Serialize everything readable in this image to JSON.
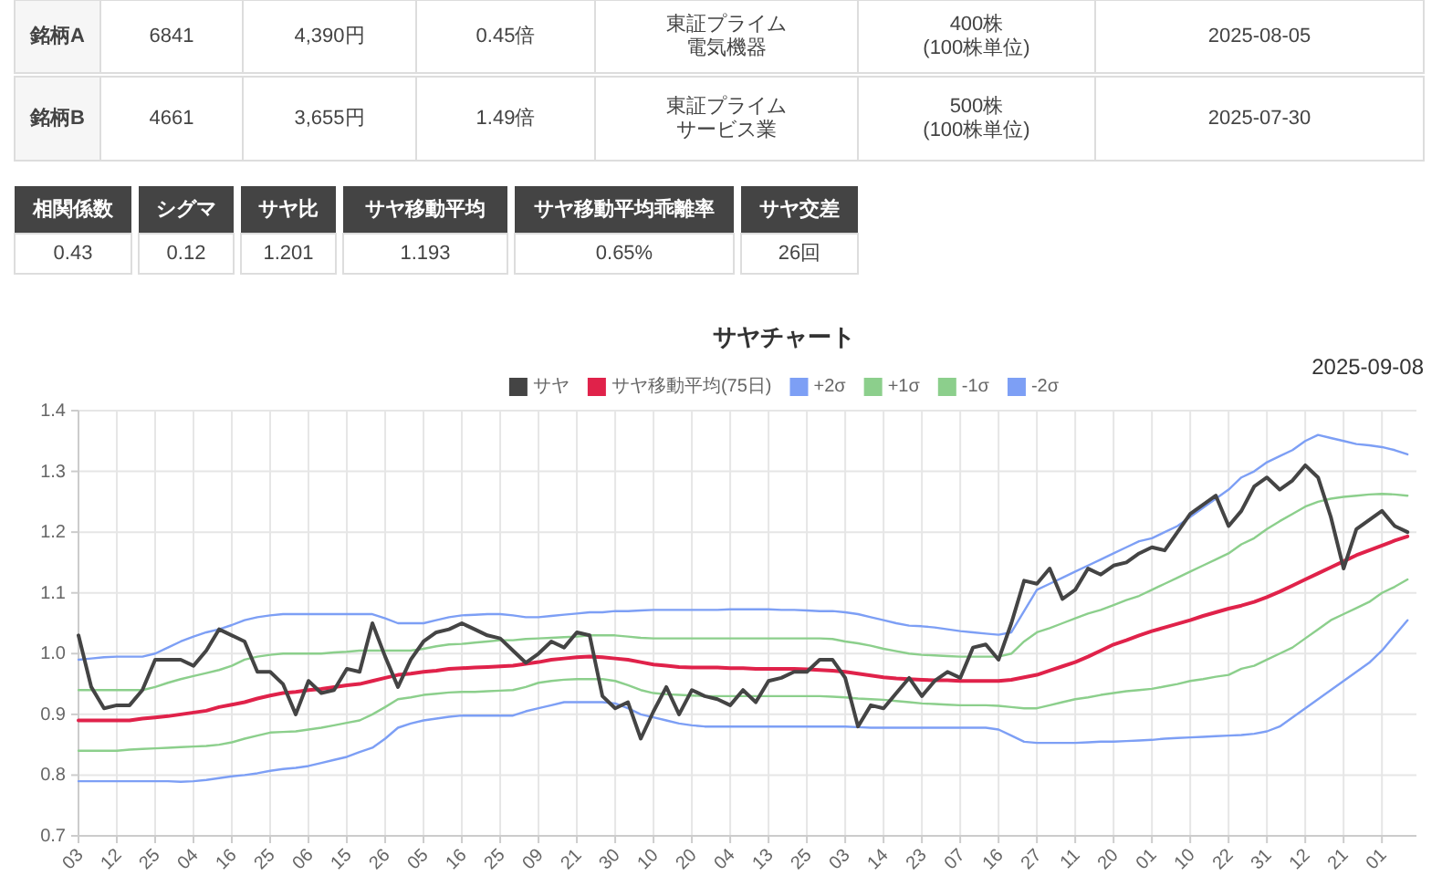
{
  "chart_data": [
    {
      "type": "other",
      "annotations": [
        "銘柄A",
        "6841",
        "4,390円",
        "0.45倍",
        "東証プライム",
        "電気機器",
        "400株\n(100株単位)",
        "2025-08-05",
        "銘柄B",
        "4661",
        "3,655円",
        "1.49倍",
        "東証プライム",
        "サービス業",
        "500株\n(100株単位)",
        "2025-07-30",
        "相関係数",
        "0.43",
        "シグマ",
        "0.12",
        "サヤ比",
        "1.201",
        "サヤ移動平均",
        "1.193",
        "サヤ移動平均乖離率",
        "0.65%",
        "サヤ交差",
        "26回"
      ]
    },
    {
      "type": "line",
      "title": "サヤチャート",
      "annotations": [
        "2025-09-08"
      ],
      "categories": [
        "03",
        null,
        null,
        "12",
        null,
        null,
        "25",
        null,
        null,
        "04",
        null,
        null,
        "16",
        null,
        null,
        "25",
        null,
        null,
        "06",
        null,
        null,
        "15",
        null,
        null,
        "26",
        null,
        null,
        "05",
        null,
        null,
        "16",
        null,
        null,
        "25",
        null,
        null,
        "09",
        null,
        null,
        "21",
        null,
        null,
        "30",
        null,
        null,
        "10",
        null,
        null,
        "20",
        null,
        null,
        "04",
        null,
        null,
        "13",
        null,
        null,
        "25",
        null,
        null,
        "03",
        null,
        null,
        "14",
        null,
        null,
        "23",
        null,
        null,
        "07",
        null,
        null,
        "16",
        null,
        null,
        "27",
        null,
        null,
        "11",
        null,
        null,
        "20",
        null,
        null,
        "01",
        null,
        null,
        "10",
        null,
        null,
        "22",
        null,
        null,
        "31",
        null,
        null,
        "12",
        null,
        null,
        "21",
        null,
        null,
        "01",
        null,
        null
      ],
      "series": [
        {
          "name": "サヤ",
          "color": "#444444",
          "values": [
            1.03,
            0.945,
            0.91,
            0.915,
            0.915,
            0.94,
            0.99,
            0.99,
            0.99,
            0.98,
            1.005,
            1.04,
            1.03,
            1.02,
            0.97,
            0.97,
            0.95,
            0.9,
            0.955,
            0.935,
            0.94,
            0.975,
            0.97,
            1.05,
            0.995,
            0.945,
            0.99,
            1.02,
            1.035,
            1.04,
            1.05,
            1.04,
            1.03,
            1.025,
            1.005,
            0.985,
            1.0,
            1.02,
            1.01,
            1.035,
            1.03,
            0.93,
            0.91,
            0.92,
            0.86,
            0.905,
            0.945,
            0.9,
            0.94,
            0.93,
            0.925,
            0.915,
            0.94,
            0.92,
            0.955,
            0.96,
            0.97,
            0.97,
            0.99,
            0.99,
            0.96,
            0.88,
            0.915,
            0.91,
            0.935,
            0.96,
            0.93,
            0.955,
            0.97,
            0.96,
            1.01,
            1.015,
            0.99,
            1.05,
            1.12,
            1.115,
            1.14,
            1.09,
            1.105,
            1.14,
            1.13,
            1.145,
            1.15,
            1.165,
            1.175,
            1.17,
            1.2,
            1.23,
            1.245,
            1.26,
            1.21,
            1.235,
            1.275,
            1.29,
            1.27,
            1.285,
            1.31,
            1.29,
            1.225,
            1.14,
            1.205,
            1.22,
            1.235,
            1.21,
            1.2
          ]
        },
        {
          "name": "サヤ移動平均(75日)",
          "color": "#e0224a",
          "values": [
            0.89,
            0.89,
            0.89,
            0.89,
            0.89,
            0.893,
            0.895,
            0.897,
            0.9,
            0.903,
            0.906,
            0.912,
            0.916,
            0.92,
            0.926,
            0.931,
            0.935,
            0.937,
            0.94,
            0.942,
            0.945,
            0.948,
            0.95,
            0.955,
            0.96,
            0.965,
            0.967,
            0.97,
            0.972,
            0.975,
            0.976,
            0.977,
            0.978,
            0.979,
            0.98,
            0.983,
            0.986,
            0.99,
            0.992,
            0.994,
            0.995,
            0.994,
            0.992,
            0.99,
            0.986,
            0.982,
            0.98,
            0.978,
            0.977,
            0.977,
            0.977,
            0.976,
            0.976,
            0.975,
            0.975,
            0.975,
            0.975,
            0.974,
            0.973,
            0.972,
            0.97,
            0.967,
            0.964,
            0.961,
            0.959,
            0.958,
            0.957,
            0.956,
            0.956,
            0.955,
            0.955,
            0.955,
            0.955,
            0.957,
            0.961,
            0.965,
            0.972,
            0.979,
            0.986,
            0.995,
            1.005,
            1.015,
            1.022,
            1.03,
            1.037,
            1.043,
            1.049,
            1.055,
            1.062,
            1.068,
            1.074,
            1.079,
            1.085,
            1.093,
            1.102,
            1.112,
            1.122,
            1.132,
            1.142,
            1.152,
            1.162,
            1.17,
            1.178,
            1.186,
            1.193
          ]
        },
        {
          "name": "+2σ",
          "color": "#7d9ff5",
          "values": [
            0.99,
            0.992,
            0.994,
            0.995,
            0.995,
            0.995,
            1.0,
            1.01,
            1.02,
            1.028,
            1.035,
            1.04,
            1.047,
            1.055,
            1.06,
            1.063,
            1.065,
            1.065,
            1.065,
            1.065,
            1.065,
            1.065,
            1.065,
            1.065,
            1.058,
            1.05,
            1.05,
            1.05,
            1.055,
            1.06,
            1.063,
            1.064,
            1.065,
            1.065,
            1.063,
            1.06,
            1.06,
            1.062,
            1.064,
            1.066,
            1.068,
            1.068,
            1.07,
            1.07,
            1.071,
            1.072,
            1.072,
            1.072,
            1.072,
            1.072,
            1.072,
            1.073,
            1.073,
            1.073,
            1.073,
            1.072,
            1.072,
            1.071,
            1.07,
            1.07,
            1.068,
            1.065,
            1.06,
            1.055,
            1.05,
            1.046,
            1.045,
            1.043,
            1.04,
            1.037,
            1.035,
            1.033,
            1.031,
            1.035,
            1.07,
            1.105,
            1.115,
            1.125,
            1.135,
            1.145,
            1.155,
            1.165,
            1.175,
            1.185,
            1.19,
            1.2,
            1.21,
            1.225,
            1.24,
            1.255,
            1.27,
            1.29,
            1.3,
            1.315,
            1.325,
            1.335,
            1.35,
            1.36,
            1.355,
            1.35,
            1.345,
            1.343,
            1.34,
            1.335,
            1.328
          ]
        },
        {
          "name": "+1σ",
          "color": "#8ccf8c",
          "values": [
            0.94,
            0.94,
            0.94,
            0.94,
            0.94,
            0.94,
            0.945,
            0.952,
            0.958,
            0.963,
            0.968,
            0.973,
            0.98,
            0.99,
            0.995,
            0.998,
            1.0,
            1.0,
            1.0,
            1.0,
            1.002,
            1.003,
            1.005,
            1.005,
            1.005,
            1.005,
            1.005,
            1.008,
            1.012,
            1.015,
            1.016,
            1.018,
            1.02,
            1.022,
            1.022,
            1.024,
            1.025,
            1.026,
            1.027,
            1.028,
            1.03,
            1.03,
            1.03,
            1.028,
            1.026,
            1.025,
            1.025,
            1.025,
            1.025,
            1.025,
            1.025,
            1.025,
            1.025,
            1.025,
            1.025,
            1.025,
            1.025,
            1.025,
            1.025,
            1.024,
            1.02,
            1.017,
            1.013,
            1.008,
            1.004,
            1.0,
            0.998,
            0.997,
            0.996,
            0.995,
            0.995,
            0.995,
            0.995,
            1.0,
            1.02,
            1.035,
            1.042,
            1.05,
            1.058,
            1.066,
            1.072,
            1.08,
            1.088,
            1.095,
            1.105,
            1.115,
            1.125,
            1.135,
            1.145,
            1.155,
            1.165,
            1.18,
            1.19,
            1.205,
            1.218,
            1.23,
            1.242,
            1.25,
            1.255,
            1.258,
            1.26,
            1.262,
            1.263,
            1.262,
            1.26
          ]
        },
        {
          "name": "-1σ",
          "color": "#8ccf8c",
          "values": [
            0.84,
            0.84,
            0.84,
            0.84,
            0.842,
            0.843,
            0.844,
            0.845,
            0.846,
            0.847,
            0.848,
            0.85,
            0.854,
            0.86,
            0.865,
            0.87,
            0.871,
            0.872,
            0.875,
            0.878,
            0.882,
            0.886,
            0.89,
            0.9,
            0.912,
            0.925,
            0.928,
            0.932,
            0.934,
            0.936,
            0.937,
            0.937,
            0.938,
            0.939,
            0.94,
            0.945,
            0.952,
            0.955,
            0.957,
            0.958,
            0.958,
            0.958,
            0.955,
            0.948,
            0.94,
            0.935,
            0.933,
            0.932,
            0.931,
            0.93,
            0.93,
            0.93,
            0.93,
            0.93,
            0.93,
            0.93,
            0.93,
            0.93,
            0.93,
            0.929,
            0.928,
            0.926,
            0.925,
            0.924,
            0.922,
            0.92,
            0.918,
            0.917,
            0.916,
            0.915,
            0.915,
            0.915,
            0.914,
            0.912,
            0.91,
            0.91,
            0.915,
            0.92,
            0.925,
            0.928,
            0.932,
            0.935,
            0.938,
            0.94,
            0.942,
            0.946,
            0.95,
            0.955,
            0.958,
            0.962,
            0.965,
            0.975,
            0.98,
            0.99,
            1.0,
            1.01,
            1.025,
            1.04,
            1.055,
            1.065,
            1.075,
            1.085,
            1.1,
            1.11,
            1.122
          ]
        },
        {
          "name": "-2σ",
          "color": "#7d9ff5",
          "values": [
            0.79,
            0.79,
            0.79,
            0.79,
            0.79,
            0.79,
            0.79,
            0.79,
            0.789,
            0.79,
            0.792,
            0.795,
            0.798,
            0.8,
            0.803,
            0.807,
            0.81,
            0.812,
            0.815,
            0.82,
            0.825,
            0.83,
            0.838,
            0.845,
            0.86,
            0.878,
            0.885,
            0.89,
            0.893,
            0.896,
            0.898,
            0.898,
            0.898,
            0.898,
            0.898,
            0.905,
            0.91,
            0.915,
            0.92,
            0.92,
            0.92,
            0.92,
            0.918,
            0.91,
            0.9,
            0.895,
            0.89,
            0.885,
            0.882,
            0.88,
            0.88,
            0.88,
            0.88,
            0.88,
            0.88,
            0.88,
            0.88,
            0.88,
            0.88,
            0.88,
            0.88,
            0.879,
            0.878,
            0.878,
            0.878,
            0.878,
            0.878,
            0.878,
            0.878,
            0.878,
            0.878,
            0.878,
            0.875,
            0.865,
            0.855,
            0.853,
            0.853,
            0.853,
            0.853,
            0.854,
            0.855,
            0.855,
            0.856,
            0.857,
            0.858,
            0.86,
            0.861,
            0.862,
            0.863,
            0.864,
            0.865,
            0.866,
            0.868,
            0.872,
            0.88,
            0.895,
            0.91,
            0.925,
            0.94,
            0.955,
            0.97,
            0.985,
            1.005,
            1.03,
            1.055
          ]
        }
      ],
      "ylim": [
        0.7,
        1.4
      ],
      "yticks": [
        0.7,
        0.8,
        0.9,
        {
          "value": 1.0,
          "label": "1.0"
        },
        1.1,
        1.2,
        1.3,
        1.4
      ],
      "grid": true,
      "legend": "top",
      "marker": "none",
      "line_style": "solid"
    }
  ]
}
